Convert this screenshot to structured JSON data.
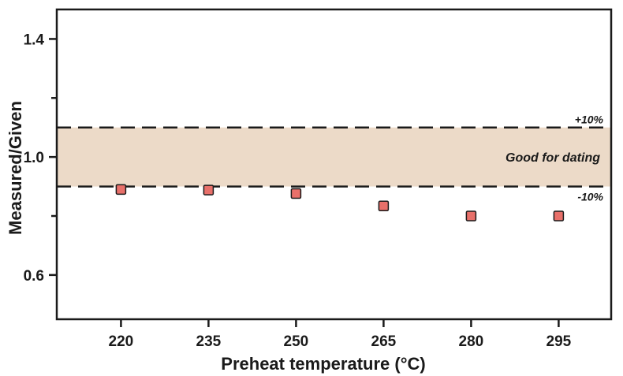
{
  "chart_data": {
    "type": "scatter",
    "xlabel": "Preheat temperature (°C)",
    "ylabel": "Measured/Given",
    "xlim": [
      209,
      304
    ],
    "ylim": [
      0.45,
      1.5
    ],
    "x_ticks": [
      "220",
      "235",
      "250",
      "265",
      "280",
      "295"
    ],
    "y_ticks": [
      "1.4",
      "1.0",
      "0.6"
    ],
    "y_minor_ticks": [
      1.2,
      0.8
    ],
    "grid": false,
    "series": [
      {
        "x": [
          220,
          235,
          250,
          265,
          280,
          295
        ],
        "y": [
          0.89,
          0.888,
          0.876,
          0.834,
          0.8,
          0.8
        ],
        "marker": "square",
        "color": "#e8706a"
      }
    ],
    "band": {
      "lower": 0.9,
      "upper": 1.1,
      "label": "Good for dating",
      "upper_label": "+10%",
      "lower_label": "-10%",
      "color": "#ecdac8"
    }
  }
}
